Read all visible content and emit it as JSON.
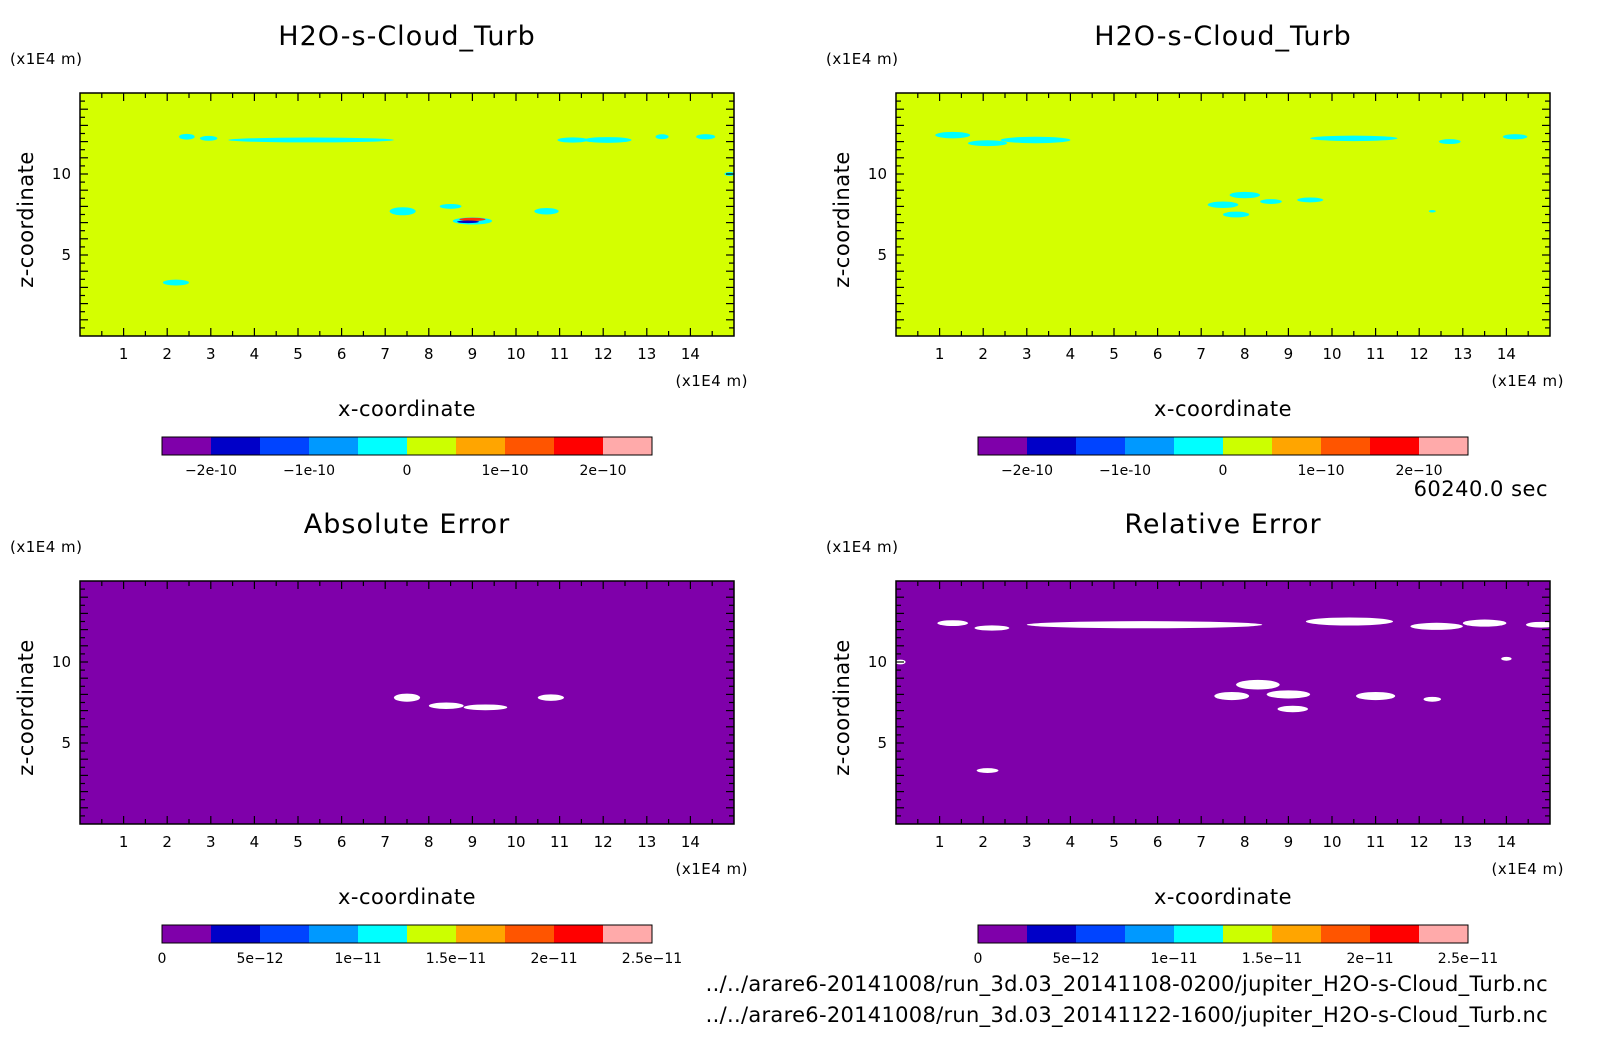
{
  "time_label": "60240.0 sec",
  "file_paths": [
    "../../arare6-20141008/run_3d.03_20141108-0200/jupiter_H2O-s-Cloud_Turb.nc",
    "../../arare6-20141008/run_3d.03_20141122-1600/jupiter_H2O-s-Cloud_Turb.nc"
  ],
  "colors": {
    "background_top": "#d4ff00",
    "background_bottom": "#7f00aa",
    "patch_cyan": "#00ffff",
    "patch_white": "#ffffff",
    "colorbar": [
      "#7f00aa",
      "#0000c8",
      "#0044ff",
      "#0099ff",
      "#00ffff",
      "#ccff00",
      "#ffa500",
      "#ff5500",
      "#ff0000",
      "#ffaaaa"
    ]
  },
  "chart_data": [
    {
      "type": "heatmap",
      "title": "H2O-s-Cloud_Turb",
      "xlabel": "x-coordinate",
      "ylabel": "z-coordinate",
      "x_unit": "(x1E4 m)",
      "y_unit": "(x1E4 m)",
      "xlim": [
        0,
        15
      ],
      "ylim": [
        0,
        15
      ],
      "x_ticks": [
        "1",
        "2",
        "3",
        "4",
        "5",
        "6",
        "7",
        "8",
        "9",
        "10",
        "11",
        "12",
        "13",
        "14"
      ],
      "y_ticks": [
        "5",
        "10"
      ],
      "colorbar_labels": [
        "-2e-10",
        "-1e-10",
        "0",
        "1e-10",
        "2e-10"
      ],
      "colorbar_range": [
        -2.5e-10,
        2.5e-10
      ]
    },
    {
      "type": "heatmap",
      "title": "H2O-s-Cloud_Turb",
      "xlabel": "x-coordinate",
      "ylabel": "z-coordinate",
      "x_unit": "(x1E4 m)",
      "y_unit": "(x1E4 m)",
      "xlim": [
        0,
        15
      ],
      "ylim": [
        0,
        15
      ],
      "x_ticks": [
        "1",
        "2",
        "3",
        "4",
        "5",
        "6",
        "7",
        "8",
        "9",
        "10",
        "11",
        "12",
        "13",
        "14"
      ],
      "y_ticks": [
        "5",
        "10"
      ],
      "colorbar_labels": [
        "-2e-10",
        "-1e-10",
        "0",
        "1e-10",
        "2e-10"
      ],
      "colorbar_range": [
        -2.5e-10,
        2.5e-10
      ]
    },
    {
      "type": "heatmap",
      "title": "Absolute Error",
      "xlabel": "x-coordinate",
      "ylabel": "z-coordinate",
      "x_unit": "(x1E4 m)",
      "y_unit": "(x1E4 m)",
      "xlim": [
        0,
        15
      ],
      "ylim": [
        0,
        15
      ],
      "x_ticks": [
        "1",
        "2",
        "3",
        "4",
        "5",
        "6",
        "7",
        "8",
        "9",
        "10",
        "11",
        "12",
        "13",
        "14"
      ],
      "y_ticks": [
        "5",
        "10"
      ],
      "colorbar_labels": [
        "0",
        "5e-12",
        "1e-11",
        "1.5e-11",
        "2e-11",
        "2.5e-11"
      ],
      "colorbar_range": [
        0,
        2.5e-11
      ]
    },
    {
      "type": "heatmap",
      "title": "Relative Error",
      "xlabel": "x-coordinate",
      "ylabel": "z-coordinate",
      "x_unit": "(x1E4 m)",
      "y_unit": "(x1E4 m)",
      "xlim": [
        0,
        15
      ],
      "ylim": [
        0,
        15
      ],
      "x_ticks": [
        "1",
        "2",
        "3",
        "4",
        "5",
        "6",
        "7",
        "8",
        "9",
        "10",
        "11",
        "12",
        "13",
        "14"
      ],
      "y_ticks": [
        "5",
        "10"
      ],
      "colorbar_labels": [
        "0",
        "5e-12",
        "1e-11",
        "1.5e-11",
        "2e-11",
        "2.5e-11"
      ],
      "colorbar_range": [
        0,
        2.5e-11
      ]
    }
  ]
}
